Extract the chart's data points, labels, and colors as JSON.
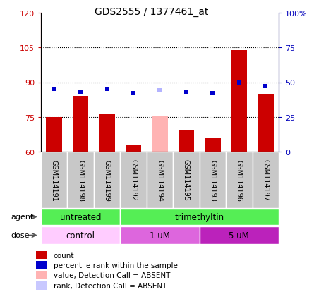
{
  "title": "GDS2555 / 1377461_at",
  "samples": [
    "GSM114191",
    "GSM114198",
    "GSM114199",
    "GSM114192",
    "GSM114194",
    "GSM114195",
    "GSM114193",
    "GSM114196",
    "GSM114197"
  ],
  "bar_values": [
    75,
    84,
    76,
    63,
    75.5,
    69,
    66,
    104,
    85
  ],
  "bar_colors": [
    "#cc0000",
    "#cc0000",
    "#cc0000",
    "#cc0000",
    "#ffb3b3",
    "#cc0000",
    "#cc0000",
    "#cc0000",
    "#cc0000"
  ],
  "rank_values": [
    45,
    43,
    45,
    42,
    44,
    43,
    42,
    50,
    47
  ],
  "rank_colors": [
    "#0000cc",
    "#0000cc",
    "#0000cc",
    "#0000cc",
    "#b3b3ff",
    "#0000cc",
    "#0000cc",
    "#0000cc",
    "#0000cc"
  ],
  "ylim_left": [
    60,
    120
  ],
  "ylim_right": [
    0,
    100
  ],
  "yticks_left": [
    60,
    75,
    90,
    105,
    120
  ],
  "yticks_right": [
    0,
    25,
    50,
    75,
    100
  ],
  "ytick_labels_right": [
    "0",
    "25",
    "50",
    "75",
    "100%"
  ],
  "hlines": [
    75,
    90,
    105
  ],
  "agent_groups": [
    {
      "label": "untreated",
      "start": 0,
      "end": 3,
      "color": "#55ee55"
    },
    {
      "label": "trimethyltin",
      "start": 3,
      "end": 9,
      "color": "#55ee55"
    }
  ],
  "dose_groups": [
    {
      "label": "control",
      "start": 0,
      "end": 3,
      "color": "#ffaaff"
    },
    {
      "label": "1 uM",
      "start": 3,
      "end": 6,
      "color": "#ee77ee"
    },
    {
      "label": "5 uM",
      "start": 6,
      "end": 9,
      "color": "#cc33cc"
    }
  ],
  "legend_items": [
    {
      "color": "#cc0000",
      "label": "count"
    },
    {
      "color": "#0000cc",
      "label": "percentile rank within the sample"
    },
    {
      "color": "#ffb3b3",
      "label": "value, Detection Call = ABSENT"
    },
    {
      "color": "#c8c8ff",
      "label": "rank, Detection Call = ABSENT"
    }
  ],
  "left_tick_color": "#cc0000",
  "right_tick_color": "#0000bb"
}
